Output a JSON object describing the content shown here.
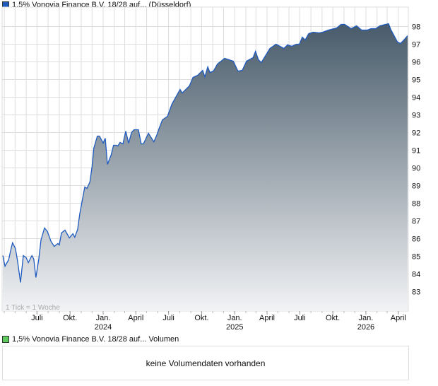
{
  "legend_price": {
    "label": "1,5% Vonovia Finance B.V. 18/28 auf... (Düsseldorf)",
    "color": "#1f5bbf"
  },
  "legend_volume": {
    "label": "1,5% Vonovia Finance B.V. 18/28 auf... Volumen",
    "color": "#5ec95e"
  },
  "volume_message": "keine Volumendaten vorhanden",
  "tick_note": "1 Tick = 1 Woche",
  "chart_data": {
    "type": "area",
    "title": "",
    "xlabel": "",
    "ylabel": "",
    "xlim": [
      "2023-03-26",
      "2026-04-29"
    ],
    "ylim": [
      81.9,
      99.1
    ],
    "grid": true,
    "line_color": "#1f5bbf",
    "fill_top_color": "#485b6a",
    "fill_bottom_color": "#f2f3f5",
    "y_ticks": [
      83,
      84,
      85,
      86,
      87,
      88,
      89,
      90,
      91,
      92,
      93,
      94,
      95,
      96,
      97,
      98
    ],
    "x_ticks": [
      {
        "date": "2023-07-01",
        "label": "Juli",
        "year": ""
      },
      {
        "date": "2023-10-01",
        "label": "Okt.",
        "year": ""
      },
      {
        "date": "2024-01-01",
        "label": "Jan.",
        "year": "2024"
      },
      {
        "date": "2024-04-01",
        "label": "April",
        "year": ""
      },
      {
        "date": "2024-07-01",
        "label": "Juli",
        "year": ""
      },
      {
        "date": "2024-10-01",
        "label": "Okt.",
        "year": ""
      },
      {
        "date": "2025-01-01",
        "label": "Jan.",
        "year": "2025"
      },
      {
        "date": "2025-04-01",
        "label": "April",
        "year": ""
      },
      {
        "date": "2025-07-01",
        "label": "Juli",
        "year": ""
      },
      {
        "date": "2025-10-01",
        "label": "Okt.",
        "year": ""
      },
      {
        "date": "2026-01-01",
        "label": "Jan.",
        "year": "2026"
      },
      {
        "date": "2026-04-01",
        "label": "April",
        "year": ""
      }
    ],
    "series": [
      {
        "x": [
          "2023-03-28",
          "2023-04-03",
          "2023-04-13",
          "2023-04-21",
          "2023-04-24",
          "2023-05-02",
          "2023-05-08",
          "2023-05-16",
          "2023-05-24",
          "2023-06-01",
          "2023-06-07",
          "2023-06-17",
          "2023-06-22",
          "2023-06-28",
          "2023-07-06",
          "2023-07-12",
          "2023-07-22",
          "2023-07-30",
          "2023-08-09",
          "2023-08-18",
          "2023-08-28",
          "2023-09-01",
          "2023-09-07",
          "2023-09-17",
          "2023-09-29",
          "2023-10-09",
          "2023-10-14",
          "2023-10-22",
          "2023-10-28",
          "2023-11-11",
          "2023-11-17",
          "2023-11-25",
          "2023-12-01",
          "2023-12-06",
          "2023-12-16",
          "2023-12-22",
          "2024-01-01",
          "2024-01-07",
          "2024-01-13",
          "2024-01-23",
          "2024-01-30",
          "2024-02-07",
          "2024-02-11",
          "2024-02-17",
          "2024-02-25",
          "2024-03-04",
          "2024-03-12",
          "2024-03-20",
          "2024-03-27",
          "2024-04-08",
          "2024-04-16",
          "2024-04-22",
          "2024-05-06",
          "2024-05-21",
          "2024-05-29",
          "2024-06-04",
          "2024-06-14",
          "2024-06-28",
          "2024-07-10",
          "2024-08-02",
          "2024-08-08",
          "2024-08-28",
          "2024-09-07",
          "2024-09-20",
          "2024-10-04",
          "2024-10-10",
          "2024-10-18",
          "2024-10-24",
          "2024-11-03",
          "2024-11-14",
          "2024-12-04",
          "2024-12-28",
          "2025-01-10",
          "2025-01-22",
          "2025-02-03",
          "2025-02-21",
          "2025-02-28",
          "2025-03-08",
          "2025-03-16",
          "2025-04-09",
          "2025-04-26",
          "2025-05-18",
          "2025-05-28",
          "2025-06-09",
          "2025-06-22",
          "2025-06-30",
          "2025-07-08",
          "2025-07-16",
          "2025-07-26",
          "2025-08-07",
          "2025-08-24",
          "2025-09-03",
          "2025-09-19",
          "2025-10-12",
          "2025-10-24",
          "2025-11-03",
          "2025-11-21",
          "2025-12-06",
          "2025-12-20",
          "2026-01-05",
          "2026-01-15",
          "2026-01-28",
          "2026-02-09",
          "2026-03-05",
          "2026-03-11",
          "2026-03-30",
          "2026-04-07",
          "2026-04-13",
          "2026-04-27"
        ],
        "y": [
          85.04,
          84.44,
          84.8,
          85.52,
          85.76,
          85.44,
          84.72,
          83.52,
          85.04,
          84.92,
          84.64,
          85.04,
          84.84,
          83.8,
          84.84,
          85.92,
          86.6,
          86.4,
          85.84,
          85.56,
          85.72,
          85.64,
          86.32,
          86.48,
          86.04,
          86.28,
          86.08,
          86.52,
          87.4,
          88.92,
          88.84,
          89.2,
          90.04,
          91.12,
          91.8,
          91.8,
          91.4,
          91.68,
          90.2,
          90.72,
          91.28,
          91.28,
          91.24,
          91.44,
          91.36,
          92.08,
          91.4,
          92.0,
          92.16,
          92.16,
          91.36,
          91.36,
          91.96,
          91.48,
          91.84,
          92.2,
          92.72,
          92.92,
          93.6,
          94.44,
          94.24,
          94.64,
          95.12,
          95.24,
          95.52,
          95.16,
          95.72,
          95.4,
          95.48,
          95.88,
          96.2,
          96.04,
          95.48,
          95.52,
          96.04,
          96.24,
          96.6,
          96.12,
          95.96,
          96.76,
          97.0,
          96.76,
          96.96,
          96.88,
          97.0,
          97.0,
          97.4,
          97.24,
          97.6,
          97.68,
          97.64,
          97.68,
          97.8,
          97.92,
          98.12,
          98.12,
          97.88,
          98.04,
          97.8,
          97.8,
          97.88,
          97.88,
          98.04,
          98.16,
          97.84,
          97.12,
          97.04,
          97.16,
          97.48
        ]
      }
    ]
  }
}
